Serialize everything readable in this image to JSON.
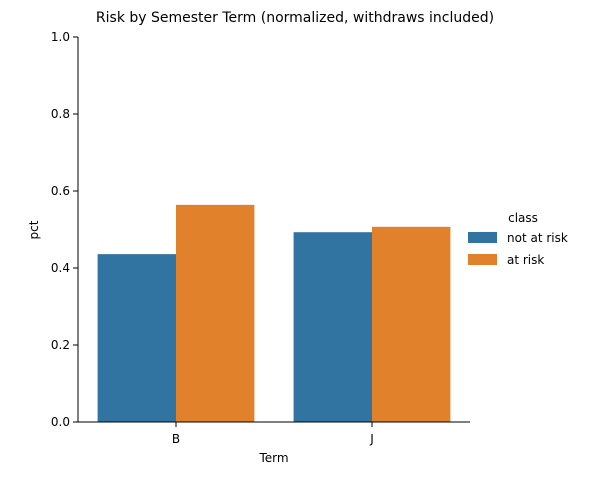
{
  "chart_data": {
    "type": "bar",
    "title": "Risk by Semester Term (normalized, withdraws included)",
    "xlabel": "Term",
    "ylabel": "pct",
    "categories": [
      "B",
      "J"
    ],
    "ylim": [
      0,
      1.0
    ],
    "yticks": [
      "0.0",
      "0.2",
      "0.4",
      "0.6",
      "0.8",
      "1.0"
    ],
    "grid": false,
    "legend": {
      "title": "class",
      "placement": "right"
    },
    "series": [
      {
        "name": "not at risk",
        "color": "#3274a1",
        "values": [
          0.436,
          0.493
        ]
      },
      {
        "name": "at risk",
        "color": "#e1812c",
        "values": [
          0.564,
          0.507
        ]
      }
    ]
  }
}
